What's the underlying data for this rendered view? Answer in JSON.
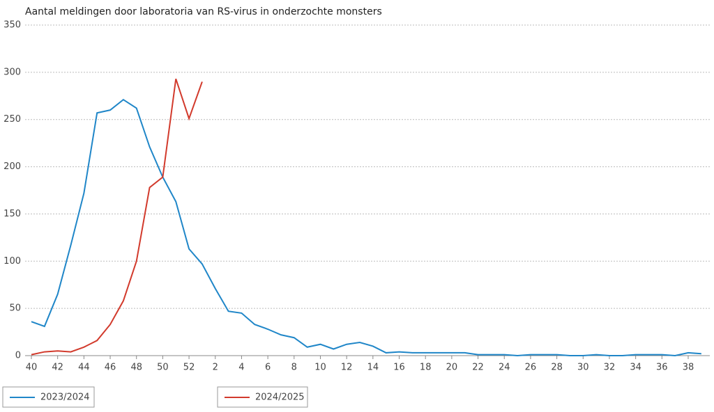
{
  "chart_data": {
    "type": "line",
    "title": "Aantal meldingen door laboratoria van RS-virus in onderzochte monsters",
    "categories": [
      "40",
      null,
      "42",
      null,
      "44",
      null,
      "46",
      null,
      "48",
      null,
      "50",
      null,
      "52",
      null,
      "2",
      null,
      "4",
      null,
      "6",
      null,
      "8",
      null,
      "10",
      null,
      "12",
      null,
      "14",
      null,
      "16",
      null,
      "18",
      null,
      "20",
      null,
      "22",
      null,
      "24",
      null,
      "26",
      null,
      "28",
      null,
      "30",
      null,
      "32",
      null,
      "34",
      null,
      "36",
      null,
      "38",
      null
    ],
    "series": [
      {
        "name": "2023/2024",
        "color": "#1f86c8",
        "values": [
          36,
          31,
          65,
          117,
          172,
          257,
          260,
          271,
          262,
          221,
          189,
          163,
          113,
          97,
          71,
          47,
          45,
          33,
          28,
          22,
          19,
          9,
          12,
          7,
          12,
          14,
          10,
          3,
          4,
          3,
          3,
          3,
          3,
          3,
          1,
          1,
          1,
          0,
          1,
          1,
          1,
          0,
          0,
          1,
          0,
          0,
          1,
          1,
          1,
          0,
          3,
          2
        ]
      },
      {
        "name": "2024/2025",
        "color": "#d23a2c",
        "values": [
          1,
          4,
          5,
          4,
          9,
          16,
          33,
          58,
          100,
          178,
          189,
          293,
          251,
          290,
          null,
          null,
          null,
          null,
          null,
          null,
          null,
          null,
          null,
          null,
          null,
          null,
          null,
          null,
          null,
          null,
          null,
          null,
          null,
          null,
          null,
          null,
          null,
          null,
          null,
          null,
          null,
          null,
          null,
          null,
          null,
          null,
          null,
          null,
          null,
          null,
          null,
          null
        ]
      }
    ],
    "ylim": [
      0,
      350
    ],
    "yticks": [
      0,
      50,
      100,
      150,
      200,
      250,
      300,
      350
    ],
    "grid": true
  }
}
